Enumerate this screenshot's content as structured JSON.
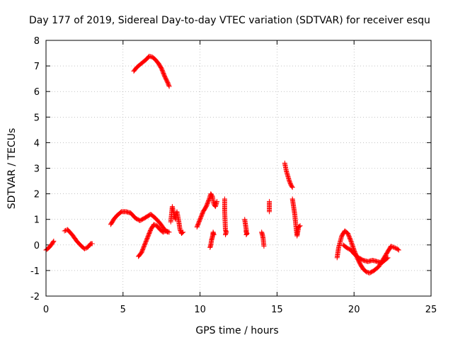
{
  "chart_data": {
    "type": "scatter",
    "title": "Day 177 of 2019, Sidereal Day-to-day VTEC variation (SDTVAR) for receiver esqu",
    "xlabel": "GPS time / hours",
    "ylabel": "SDTVAR / TECUs",
    "xlim": [
      0,
      25
    ],
    "ylim": [
      -2,
      8
    ],
    "x_ticks": [
      "0",
      "5",
      "10",
      "15",
      "20",
      "25"
    ],
    "y_ticks": [
      "-2",
      "-1",
      "0",
      "1",
      "2",
      "3",
      "4",
      "5",
      "6",
      "7",
      "8"
    ],
    "grid": true,
    "marker": "+",
    "color": "#ff0000",
    "segments": [
      {
        "x": [
          0.0,
          0.2,
          0.4,
          0.5
        ],
        "y": [
          -0.2,
          -0.1,
          0.05,
          0.15
        ]
      },
      {
        "x": [
          1.2,
          1.4,
          1.7,
          2.0,
          2.3,
          2.5,
          2.7,
          2.9,
          3.0
        ],
        "y": [
          0.55,
          0.6,
          0.4,
          0.15,
          -0.05,
          -0.15,
          -0.1,
          0.05,
          0.05
        ]
      },
      {
        "x": [
          4.2,
          4.4,
          4.6,
          4.9,
          5.2,
          5.5,
          5.8,
          6.1,
          6.4,
          6.8,
          7.1,
          7.4,
          7.7,
          7.9
        ],
        "y": [
          0.8,
          1.0,
          1.15,
          1.3,
          1.3,
          1.25,
          1.05,
          0.95,
          1.05,
          1.2,
          1.05,
          0.85,
          0.6,
          0.5
        ]
      },
      {
        "x": [
          5.7,
          5.9,
          6.1,
          6.3,
          6.5,
          6.7,
          6.9,
          7.1,
          7.3,
          7.5,
          7.7,
          7.9,
          8.0
        ],
        "y": [
          6.8,
          6.95,
          7.05,
          7.15,
          7.25,
          7.38,
          7.35,
          7.25,
          7.1,
          6.9,
          6.6,
          6.35,
          6.2
        ]
      },
      {
        "x": [
          6.0,
          6.2,
          6.4,
          6.6,
          6.8,
          7.0,
          7.2,
          7.4,
          7.6,
          7.8,
          8.0
        ],
        "y": [
          -0.45,
          -0.3,
          0.0,
          0.3,
          0.6,
          0.8,
          0.75,
          0.6,
          0.5,
          0.55,
          0.5
        ]
      },
      {
        "x": [
          8.1,
          8.2,
          8.3,
          8.4,
          8.5,
          8.6,
          8.7,
          8.8,
          8.9
        ],
        "y": [
          0.9,
          1.5,
          1.2,
          1.0,
          1.3,
          1.0,
          0.6,
          0.45,
          0.5
        ]
      },
      {
        "x": [
          9.8,
          10.0,
          10.2,
          10.4,
          10.6,
          10.7,
          10.8,
          10.9,
          11.0,
          11.1
        ],
        "y": [
          0.7,
          1.0,
          1.3,
          1.5,
          1.8,
          2.0,
          1.9,
          1.6,
          1.5,
          1.7
        ]
      },
      {
        "x": [
          10.65,
          10.7,
          10.75,
          10.8,
          10.85,
          10.9
        ],
        "y": [
          -0.1,
          0.0,
          0.2,
          0.3,
          0.5,
          0.4
        ]
      },
      {
        "x": [
          11.6,
          11.6,
          11.6,
          11.65,
          11.7,
          11.65
        ],
        "y": [
          1.8,
          1.5,
          1.3,
          0.6,
          0.5,
          0.4
        ]
      },
      {
        "x": [
          12.9,
          12.95,
          13.0,
          13.0,
          13.05,
          13.0
        ],
        "y": [
          1.0,
          0.8,
          0.6,
          0.5,
          0.45,
          0.4
        ]
      },
      {
        "x": [
          14.0,
          14.05,
          14.1,
          14.15
        ],
        "y": [
          0.5,
          0.4,
          0.25,
          -0.05
        ]
      },
      {
        "x": [
          14.5,
          14.5
        ],
        "y": [
          1.7,
          1.3
        ]
      },
      {
        "x": [
          15.5,
          15.6,
          15.7,
          15.8,
          15.9,
          16.0
        ],
        "y": [
          3.2,
          2.9,
          2.7,
          2.5,
          2.35,
          2.25
        ]
      },
      {
        "x": [
          16.0,
          16.1,
          16.15,
          16.2,
          16.25,
          16.3,
          16.4,
          16.5
        ],
        "y": [
          1.8,
          1.4,
          1.2,
          0.9,
          0.6,
          0.35,
          0.7,
          0.75
        ]
      },
      {
        "x": [
          18.9,
          19.0,
          19.2,
          19.4,
          19.6,
          19.8,
          20.0,
          20.2,
          20.4,
          20.6,
          20.8,
          21.0,
          21.3,
          21.6,
          21.9,
          22.2,
          22.4,
          22.6,
          22.8,
          22.9
        ],
        "y": [
          -0.5,
          -0.1,
          0.35,
          0.55,
          0.45,
          0.15,
          -0.2,
          -0.5,
          -0.75,
          -0.95,
          -1.05,
          -1.1,
          -1.0,
          -0.85,
          -0.55,
          -0.25,
          -0.05,
          -0.1,
          -0.15,
          -0.2
        ]
      },
      {
        "x": [
          19.3,
          19.5,
          19.8,
          20.0,
          20.3,
          20.6,
          20.9,
          21.2,
          21.5,
          21.8,
          22.0,
          22.2
        ],
        "y": [
          0.0,
          -0.1,
          -0.2,
          -0.35,
          -0.5,
          -0.6,
          -0.65,
          -0.6,
          -0.65,
          -0.7,
          -0.6,
          -0.5
        ]
      }
    ]
  }
}
